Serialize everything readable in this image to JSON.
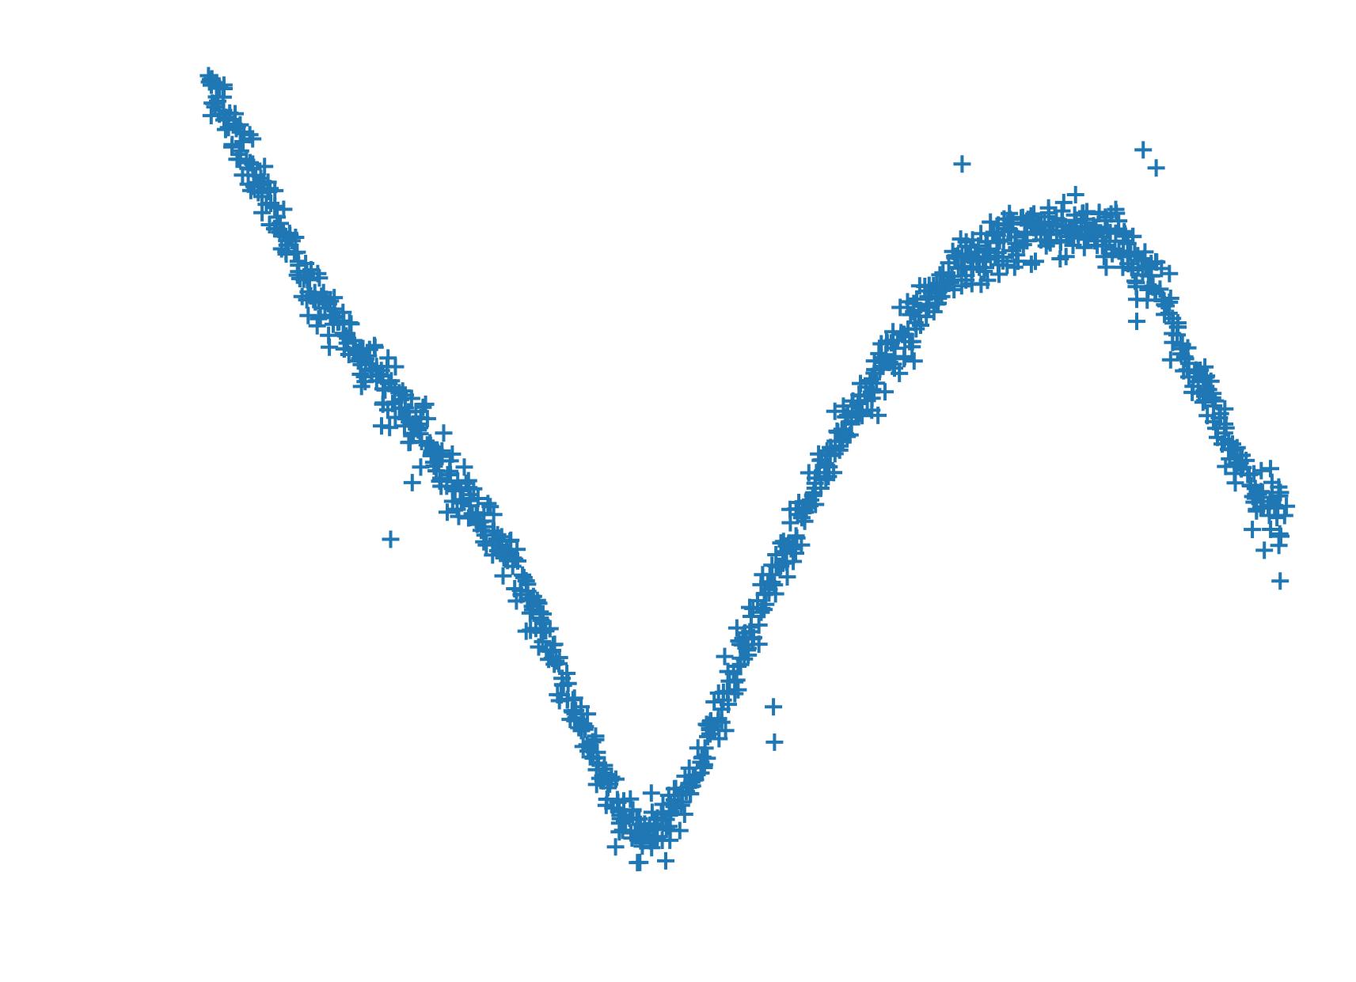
{
  "chart_data": {
    "type": "scatter",
    "title": "",
    "xlabel": "",
    "ylabel": "",
    "xlim": [
      0,
      1
    ],
    "ylim": [
      0,
      1
    ],
    "axes_visible": false,
    "grid": false,
    "marker": "plus",
    "color": "#1f77b4",
    "series": [
      {
        "trend_x": [
          0.0,
          0.02,
          0.05,
          0.08,
          0.11,
          0.14,
          0.17,
          0.2,
          0.23,
          0.26,
          0.29,
          0.32,
          0.35,
          0.38,
          0.4,
          0.43,
          0.46,
          0.5,
          0.54,
          0.58,
          0.62,
          0.66,
          0.7,
          0.74,
          0.78,
          0.82,
          0.85,
          0.88,
          0.91,
          0.94,
          0.97,
          1.0
        ],
        "trend_y": [
          1.0,
          0.95,
          0.86,
          0.77,
          0.7,
          0.655,
          0.6,
          0.54,
          0.485,
          0.43,
          0.36,
          0.27,
          0.16,
          0.07,
          0.04,
          0.06,
          0.14,
          0.28,
          0.41,
          0.53,
          0.62,
          0.7,
          0.755,
          0.79,
          0.81,
          0.81,
          0.79,
          0.735,
          0.64,
          0.56,
          0.48,
          0.44
        ],
        "noise": 0.018,
        "count": 1100,
        "outliers": [
          {
            "x": 0.19,
            "y": 0.485
          },
          {
            "x": 0.169,
            "y": 0.555
          },
          {
            "x": 0.17,
            "y": 0.413
          },
          {
            "x": 0.525,
            "y": 0.2
          },
          {
            "x": 0.526,
            "y": 0.155
          },
          {
            "x": 0.7,
            "y": 0.89
          },
          {
            "x": 0.868,
            "y": 0.908
          },
          {
            "x": 0.88,
            "y": 0.885
          },
          {
            "x": 0.862,
            "y": 0.718
          },
          {
            "x": 0.862,
            "y": 0.69
          },
          {
            "x": 0.995,
            "y": 0.36
          }
        ]
      }
    ]
  }
}
